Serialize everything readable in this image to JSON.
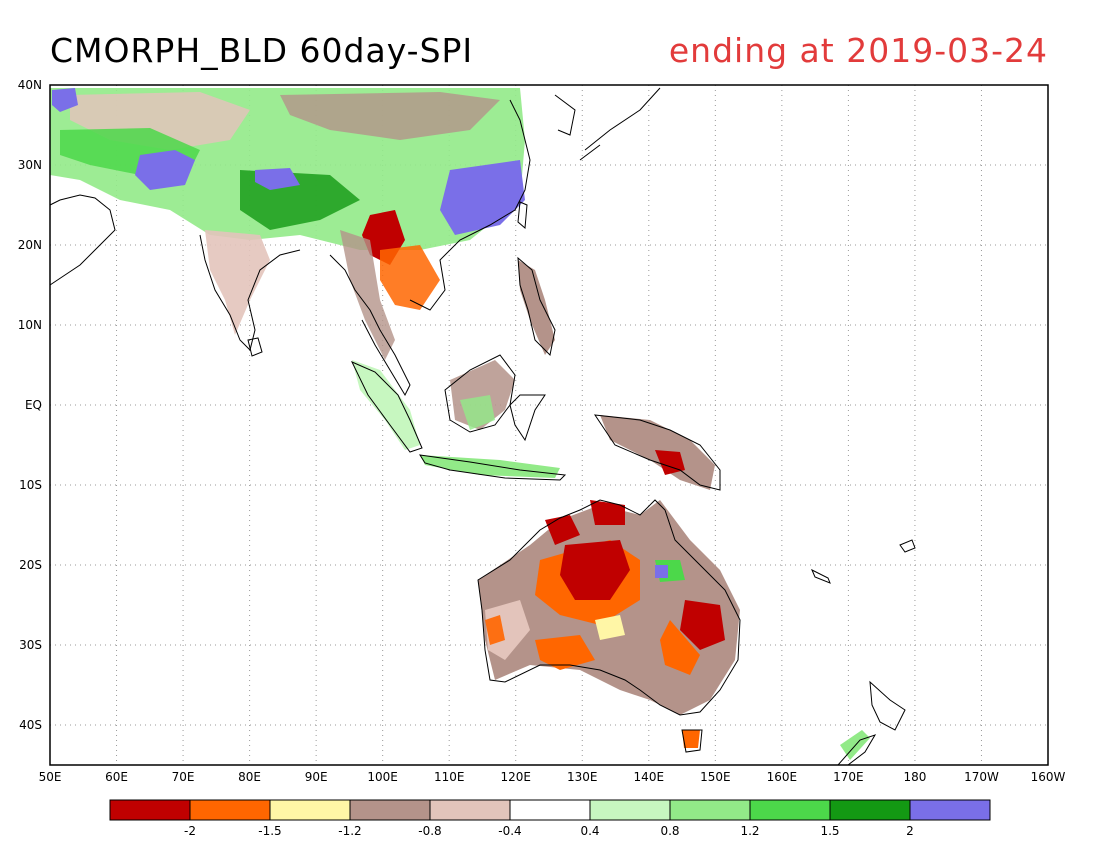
{
  "title": "CMORPH_BLD 60day-SPI",
  "subtitle": "ending at 2019-03-24",
  "colors": {
    "title": "#000000",
    "subtitle": "#e23b3b",
    "grid": "#9a9a9a",
    "coast": "#000000"
  },
  "axes": {
    "lon_labels": [
      "50E",
      "60E",
      "70E",
      "80E",
      "90E",
      "100E",
      "110E",
      "120E",
      "130E",
      "140E",
      "150E",
      "160E",
      "170E",
      "180",
      "170W",
      "160W"
    ],
    "lat_labels": [
      "40N",
      "30N",
      "20N",
      "10N",
      "EQ",
      "10S",
      "20S",
      "30S",
      "40S"
    ]
  },
  "legend": {
    "colors": [
      "#c00000",
      "#ff6600",
      "#fff6a6",
      "#b4938a",
      "#e3c4bb",
      "#ffffff",
      "#c7f7c0",
      "#92ea88",
      "#4cd84a",
      "#139913",
      "#7a6fe8"
    ],
    "labels": [
      "-2",
      "-1.5",
      "-1.2",
      "-0.8",
      "-0.4",
      "0.4",
      "0.8",
      "1.2",
      "1.5",
      "2"
    ]
  }
}
